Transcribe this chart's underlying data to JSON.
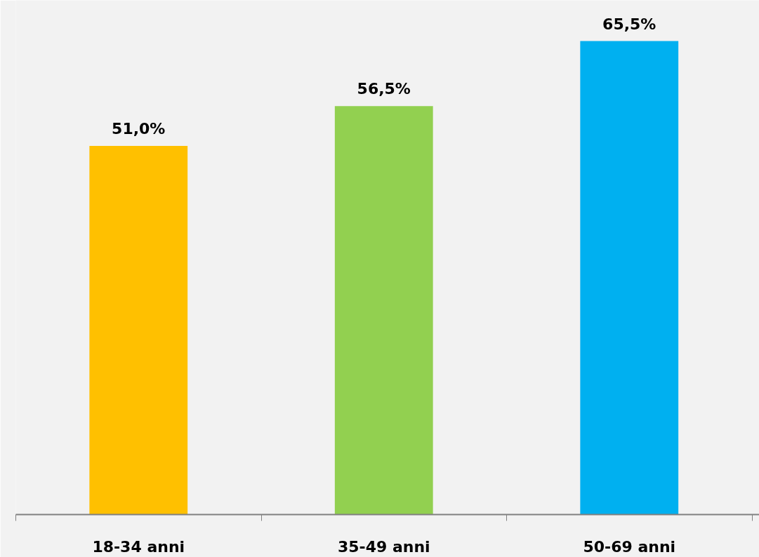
{
  "chart_data": {
    "type": "bar",
    "categories": [
      "18-34 anni",
      "35-49 anni",
      "50-69 anni"
    ],
    "values": [
      51.0,
      56.5,
      65.5
    ],
    "colors": [
      "#ffc000",
      "#92d050",
      "#00b0f0"
    ],
    "value_labels": [
      "51,0%",
      "56,5%",
      "65,5%"
    ],
    "grid": false
  }
}
